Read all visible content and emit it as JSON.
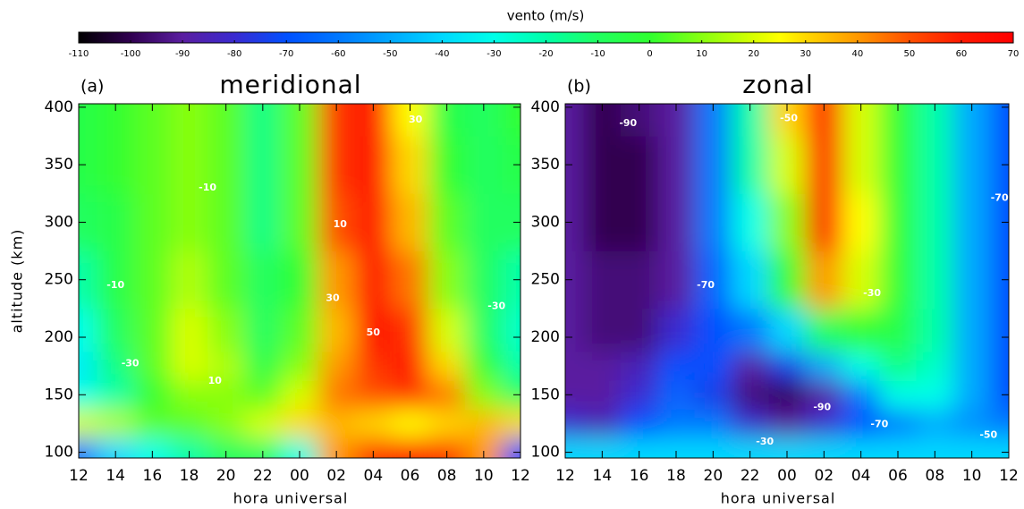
{
  "colorbar": {
    "label": "vento (m/s)",
    "lim": [
      -110,
      70
    ],
    "ticks": [
      -110,
      -100,
      -90,
      -80,
      -70,
      -60,
      -50,
      -40,
      -30,
      -20,
      -10,
      0,
      10,
      20,
      30,
      40,
      50,
      60,
      70
    ],
    "colorscale": [
      [
        -110,
        "#000000"
      ],
      [
        -100,
        "#300050"
      ],
      [
        -90,
        "#5a1ea0"
      ],
      [
        -80,
        "#3a2ad0"
      ],
      [
        -70,
        "#0050ff"
      ],
      [
        -60,
        "#0078ff"
      ],
      [
        -50,
        "#00a8ff"
      ],
      [
        -40,
        "#00d8ff"
      ],
      [
        -30,
        "#00ffe8"
      ],
      [
        -20,
        "#00ffa8"
      ],
      [
        -10,
        "#20ff60"
      ],
      [
        0,
        "#30ff30"
      ],
      [
        10,
        "#88ff10"
      ],
      [
        20,
        "#d8ff00"
      ],
      [
        25,
        "#ffff00"
      ],
      [
        30,
        "#ffd800"
      ],
      [
        40,
        "#ff9800"
      ],
      [
        50,
        "#ff5000"
      ],
      [
        60,
        "#ff1800"
      ],
      [
        70,
        "#ff0000"
      ]
    ]
  },
  "chart_data": [
    {
      "type": "heatmap",
      "label": "(a)",
      "title": "meridional",
      "xlabel": "hora universal",
      "ylabel": "altitude (km)",
      "x": [
        0,
        2,
        4,
        6,
        8,
        10,
        12,
        14,
        16,
        18,
        20,
        22,
        24
      ],
      "y": [
        100,
        125,
        150,
        175,
        200,
        250,
        300,
        350,
        400
      ],
      "z": [
        [
          -60,
          -40,
          -30,
          -20,
          -10,
          -10,
          -30,
          40,
          55,
          60,
          55,
          40,
          -70
        ],
        [
          20,
          15,
          5,
          5,
          10,
          20,
          30,
          35,
          30,
          25,
          30,
          35,
          30
        ],
        [
          -30,
          -20,
          0,
          10,
          10,
          5,
          20,
          45,
          50,
          55,
          45,
          10,
          -10
        ],
        [
          -35,
          -15,
          5,
          20,
          15,
          -5,
          10,
          40,
          55,
          60,
          30,
          0,
          -20
        ],
        [
          -30,
          -10,
          5,
          20,
          10,
          -10,
          5,
          35,
          65,
          55,
          20,
          -10,
          -25
        ],
        [
          -20,
          -5,
          5,
          15,
          5,
          -10,
          0,
          40,
          60,
          45,
          10,
          -10,
          -20
        ],
        [
          -10,
          -5,
          5,
          10,
          5,
          -15,
          5,
          50,
          60,
          35,
          5,
          -10,
          -10
        ],
        [
          -5,
          0,
          5,
          10,
          5,
          -15,
          5,
          55,
          60,
          30,
          0,
          -10,
          -5
        ],
        [
          -5,
          0,
          5,
          10,
          5,
          -15,
          5,
          55,
          60,
          25,
          -5,
          -10,
          0
        ]
      ],
      "xlim": [
        0,
        24
      ],
      "ylim": [
        95,
        403
      ],
      "xticks": [
        {
          "value": 0,
          "label": "12"
        },
        {
          "value": 2,
          "label": "14"
        },
        {
          "value": 4,
          "label": "16"
        },
        {
          "value": 6,
          "label": "18"
        },
        {
          "value": 8,
          "label": "20"
        },
        {
          "value": 10,
          "label": "22"
        },
        {
          "value": 12,
          "label": "00"
        },
        {
          "value": 14,
          "label": "02"
        },
        {
          "value": 16,
          "label": "04"
        },
        {
          "value": 18,
          "label": "06"
        },
        {
          "value": 20,
          "label": "08"
        },
        {
          "value": 22,
          "label": "10"
        },
        {
          "value": 24,
          "label": "12"
        }
      ],
      "yticks": [
        100,
        150,
        200,
        250,
        300,
        350,
        400
      ],
      "annotations": [
        {
          "text": "-10",
          "x": 7,
          "y": 330
        },
        {
          "text": "30",
          "x": 18.3,
          "y": 389
        },
        {
          "text": "10",
          "x": 14.2,
          "y": 298
        },
        {
          "text": "30",
          "x": 13.8,
          "y": 234
        },
        {
          "text": "50",
          "x": 16,
          "y": 204
        },
        {
          "text": "-10",
          "x": 2,
          "y": 245
        },
        {
          "text": "-30",
          "x": 2.8,
          "y": 177
        },
        {
          "text": "10",
          "x": 7.4,
          "y": 162
        },
        {
          "text": "-30",
          "x": 22.7,
          "y": 227
        }
      ]
    },
    {
      "type": "heatmap",
      "label": "(b)",
      "title": "zonal",
      "xlabel": "hora universal",
      "x": [
        0,
        2,
        4,
        6,
        8,
        10,
        12,
        14,
        16,
        18,
        20,
        22,
        24
      ],
      "y": [
        100,
        125,
        150,
        175,
        200,
        250,
        300,
        350,
        400
      ],
      "z": [
        [
          -40,
          -40,
          -40,
          -40,
          -40,
          -40,
          -40,
          -40,
          -40,
          -40,
          -40,
          -40,
          -40
        ],
        [
          -80,
          -85,
          -70,
          -60,
          -60,
          -80,
          -90,
          -80,
          -70,
          -60,
          -50,
          -55,
          -60
        ],
        [
          -90,
          -90,
          -80,
          -65,
          -75,
          -95,
          -100,
          -90,
          -60,
          -30,
          -30,
          -50,
          -70
        ],
        [
          -90,
          -90,
          -85,
          -70,
          -70,
          -90,
          -75,
          -50,
          -30,
          -15,
          -25,
          -50,
          -70
        ],
        [
          -90,
          -95,
          -95,
          -80,
          -70,
          -60,
          -40,
          -10,
          0,
          -5,
          -20,
          -50,
          -70
        ],
        [
          -90,
          -95,
          -95,
          -90,
          -65,
          -40,
          0,
          40,
          20,
          0,
          -20,
          -50,
          -70
        ],
        [
          -90,
          -100,
          -100,
          -90,
          -60,
          -30,
          10,
          60,
          25,
          0,
          -20,
          -50,
          -70
        ],
        [
          -90,
          -100,
          -100,
          -90,
          -60,
          -20,
          20,
          60,
          20,
          0,
          -20,
          -50,
          -70
        ],
        [
          -90,
          -100,
          -95,
          -90,
          -60,
          -20,
          30,
          60,
          20,
          0,
          -20,
          -50,
          -70
        ]
      ],
      "xlim": [
        0,
        24
      ],
      "ylim": [
        95,
        403
      ],
      "xticks": [
        {
          "value": 0,
          "label": "12"
        },
        {
          "value": 2,
          "label": "14"
        },
        {
          "value": 4,
          "label": "16"
        },
        {
          "value": 6,
          "label": "18"
        },
        {
          "value": 8,
          "label": "20"
        },
        {
          "value": 10,
          "label": "22"
        },
        {
          "value": 12,
          "label": "00"
        },
        {
          "value": 14,
          "label": "02"
        },
        {
          "value": 16,
          "label": "04"
        },
        {
          "value": 18,
          "label": "06"
        },
        {
          "value": 20,
          "label": "08"
        },
        {
          "value": 22,
          "label": "10"
        },
        {
          "value": 24,
          "label": "12"
        }
      ],
      "yticks": [
        100,
        150,
        200,
        250,
        300,
        350,
        400
      ],
      "annotations": [
        {
          "text": "-90",
          "x": 3.4,
          "y": 386
        },
        {
          "text": "-50",
          "x": 12.1,
          "y": 390
        },
        {
          "text": "-70",
          "x": 7.6,
          "y": 245
        },
        {
          "text": "-90",
          "x": 13.9,
          "y": 139
        },
        {
          "text": "-70",
          "x": 17,
          "y": 124
        },
        {
          "text": "-50",
          "x": 22.9,
          "y": 115
        },
        {
          "text": "-30",
          "x": 10.8,
          "y": 109
        },
        {
          "text": "-30",
          "x": 16.6,
          "y": 238
        },
        {
          "text": "-70",
          "x": 23.5,
          "y": 321
        }
      ]
    }
  ]
}
